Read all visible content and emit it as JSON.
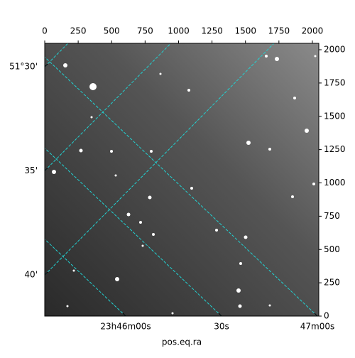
{
  "chart_data": {
    "type": "image",
    "x_label": "pos.eq.ra",
    "xlim": [
      0,
      2048
    ],
    "ylim": [
      0,
      2048
    ],
    "xticks": [
      0,
      250,
      500,
      750,
      1000,
      1250,
      1500,
      1750,
      2000
    ],
    "yticks": [
      0,
      250,
      500,
      750,
      1000,
      1250,
      1500,
      1750,
      2000
    ],
    "ra_ticks": [
      {
        "value": 356.5,
        "label": "23h46m00s"
      },
      {
        "value": 356.625,
        "label": "30s"
      },
      {
        "value": 356.75,
        "label": "47m00s"
      }
    ],
    "dec_ticks": [
      {
        "value": 51.5,
        "label": "51°30'"
      },
      {
        "value": 51.5833,
        "label": "35'"
      },
      {
        "value": 51.6667,
        "label": "40'"
      }
    ],
    "grid": true,
    "grid_color": "#22d3d3"
  }
}
